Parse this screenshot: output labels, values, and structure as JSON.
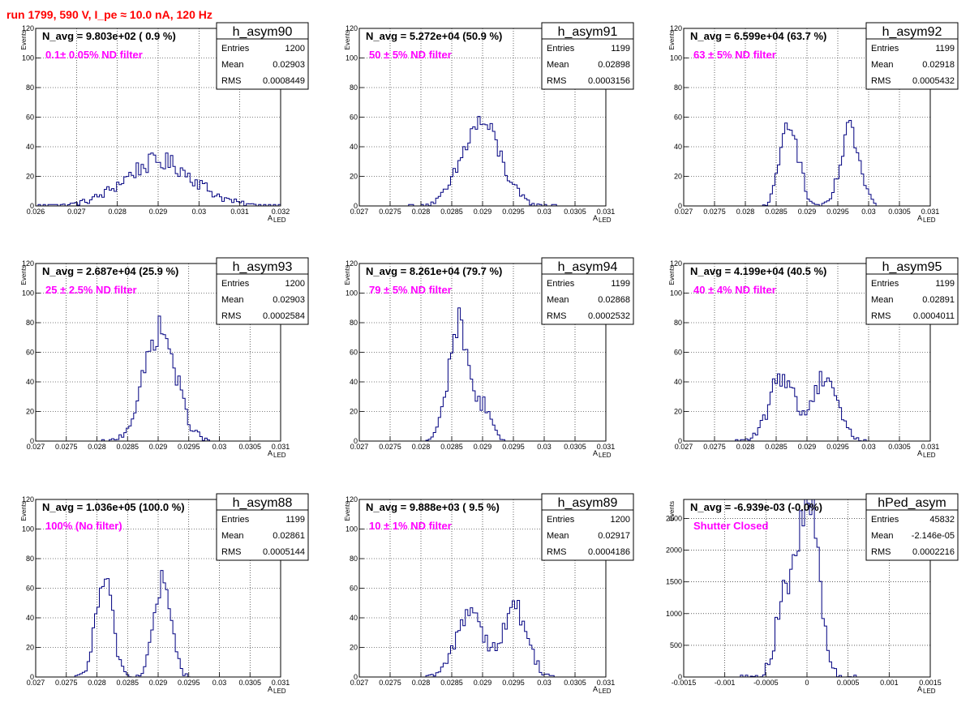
{
  "run_title": "run 1799,   590 V, I_pe ≈ 10.0 nA, 120 Hz",
  "colors": {
    "title": "#ff0000",
    "filter_label": "#ff00ff",
    "histogram_line": "#000080",
    "grid": "#000000"
  },
  "stat_labels": {
    "entries": "Entries",
    "mean": "Mean",
    "rms": "RMS"
  },
  "axis_labels": {
    "y": "Events",
    "x_main": "A",
    "x_sub": "LED"
  },
  "chart_data": [
    {
      "type": "histogram",
      "grid": true,
      "name": "h_asym90",
      "n_avg": "N_avg = 9.803e+02 ( 0.9 %)",
      "filter": "0.1± 0.05% ND filter",
      "entries": "1200",
      "mean": "0.02903",
      "rms": "0.0008449",
      "xlim": [
        0.026,
        0.032
      ],
      "ylim": [
        0,
        120
      ],
      "xticks": [
        "0.026",
        "0.027",
        "0.028",
        "0.029",
        "0.03",
        "0.031",
        "0.032"
      ],
      "yticks": [
        "0",
        "20",
        "40",
        "60",
        "80",
        "100",
        "120"
      ],
      "shape": [
        [
          0.02903,
          0.00085,
          30
        ]
      ]
    },
    {
      "type": "histogram",
      "grid": true,
      "name": "h_asym91",
      "n_avg": "N_avg = 5.272e+04 (50.9 %)",
      "filter": "50 ± 5% ND filter",
      "entries": "1199",
      "mean": "0.02898",
      "rms": "0.0003156",
      "xlim": [
        0.027,
        0.031
      ],
      "ylim": [
        0,
        120
      ],
      "xticks": [
        "0.027",
        "0.0275",
        "0.028",
        "0.0285",
        "0.029",
        "0.0295",
        "0.03",
        "0.0305",
        "0.031"
      ],
      "yticks": [
        "0",
        "20",
        "40",
        "60",
        "80",
        "100",
        "120"
      ],
      "shape": [
        [
          0.02898,
          0.00031,
          56
        ]
      ]
    },
    {
      "type": "histogram",
      "grid": true,
      "name": "h_asym92",
      "n_avg": "N_avg = 6.599e+04 (63.7 %)",
      "filter": "63 ± 5% ND filter",
      "entries": "1199",
      "mean": "0.02918",
      "rms": "0.0005432",
      "xlim": [
        0.027,
        0.031
      ],
      "ylim": [
        0,
        120
      ],
      "xticks": [
        "0.027",
        "0.0275",
        "0.028",
        "0.0285",
        "0.029",
        "0.0295",
        "0.03",
        "0.0305",
        "0.031"
      ],
      "yticks": [
        "0",
        "20",
        "40",
        "60",
        "80",
        "100",
        "120"
      ],
      "shape": [
        [
          0.02872,
          0.00014,
          60
        ],
        [
          0.0297,
          0.00015,
          50
        ]
      ]
    },
    {
      "type": "histogram",
      "grid": true,
      "name": "h_asym93",
      "n_avg": "N_avg = 2.687e+04 (25.9 %)",
      "filter": "25 ± 2.5% ND filter",
      "entries": "1200",
      "mean": "0.02903",
      "rms": "0.0002584",
      "xlim": [
        0.027,
        0.031
      ],
      "ylim": [
        0,
        120
      ],
      "xticks": [
        "0.027",
        "0.0275",
        "0.028",
        "0.0285",
        "0.029",
        "0.0295",
        "0.03",
        "0.0305",
        "0.031"
      ],
      "yticks": [
        "0",
        "20",
        "40",
        "60",
        "80",
        "100",
        "120"
      ],
      "shape": [
        [
          0.02903,
          0.00026,
          75
        ]
      ]
    },
    {
      "type": "histogram",
      "grid": true,
      "name": "h_asym94",
      "n_avg": "N_avg = 8.261e+04 (79.7 %)",
      "filter": "79 ± 5% ND filter",
      "entries": "1199",
      "mean": "0.02868",
      "rms": "0.0002532",
      "xlim": [
        0.027,
        0.031
      ],
      "ylim": [
        0,
        120
      ],
      "xticks": [
        "0.027",
        "0.0275",
        "0.028",
        "0.0285",
        "0.029",
        "0.0295",
        "0.03",
        "0.0305",
        "0.031"
      ],
      "yticks": [
        "0",
        "20",
        "40",
        "60",
        "80",
        "100",
        "120"
      ],
      "shape": [
        [
          0.02862,
          0.00017,
          80
        ],
        [
          0.02905,
          0.0001,
          22
        ]
      ]
    },
    {
      "type": "histogram",
      "grid": true,
      "name": "h_asym95",
      "n_avg": "N_avg = 4.199e+04 (40.5 %)",
      "filter": "40 ± 4% ND filter",
      "entries": "1199",
      "mean": "0.02891",
      "rms": "0.0004011",
      "xlim": [
        0.027,
        0.031
      ],
      "ylim": [
        0,
        120
      ],
      "xticks": [
        "0.027",
        "0.0275",
        "0.028",
        "0.0285",
        "0.029",
        "0.0295",
        "0.03",
        "0.0305",
        "0.031"
      ],
      "yticks": [
        "0",
        "20",
        "40",
        "60",
        "80",
        "100",
        "120"
      ],
      "shape": [
        [
          0.0286,
          0.0002,
          45
        ],
        [
          0.0293,
          0.0002,
          45
        ]
      ]
    },
    {
      "type": "histogram",
      "grid": true,
      "name": "h_asym88",
      "n_avg": "N_avg = 1.036e+05 (100.0 %)",
      "filter": "100% (No filter)",
      "entries": "1199",
      "mean": "0.02861",
      "rms": "0.0005144",
      "xlim": [
        0.027,
        0.031
      ],
      "ylim": [
        0,
        120
      ],
      "xticks": [
        "0.027",
        "0.0275",
        "0.028",
        "0.0285",
        "0.029",
        "0.0295",
        "0.03",
        "0.0305",
        "0.031"
      ],
      "yticks": [
        "0",
        "20",
        "40",
        "60",
        "80",
        "100",
        "120"
      ],
      "shape": [
        [
          0.02812,
          0.00014,
          64
        ],
        [
          0.02907,
          0.00014,
          64
        ]
      ]
    },
    {
      "type": "histogram",
      "grid": true,
      "name": "h_asym89",
      "n_avg": "N_avg = 9.888e+03 ( 9.5 %)",
      "filter": "10 ± 1% ND filter",
      "entries": "1200",
      "mean": "0.02917",
      "rms": "0.0004186",
      "xlim": [
        0.027,
        0.031
      ],
      "ylim": [
        0,
        120
      ],
      "xticks": [
        "0.027",
        "0.0275",
        "0.028",
        "0.0285",
        "0.029",
        "0.0295",
        "0.03",
        "0.0305",
        "0.031"
      ],
      "yticks": [
        "0",
        "20",
        "40",
        "60",
        "80",
        "100",
        "120"
      ],
      "shape": [
        [
          0.0288,
          0.00022,
          46
        ],
        [
          0.02953,
          0.0002,
          46
        ]
      ]
    },
    {
      "type": "histogram",
      "grid": true,
      "name": "hPed_asym",
      "n_avg": "N_avg = -6.939e-03 (-0.0%)",
      "filter": "Shutter Closed",
      "entries": "45832",
      "mean": "-2.146e-05",
      "rms": "0.0002216",
      "xlim": [
        -0.0015,
        0.0015
      ],
      "ylim": [
        0,
        2800
      ],
      "xticks": [
        "-0.0015",
        "-0.001",
        "-0.0005",
        "0",
        "0.0005",
        "0.001",
        "0.0015"
      ],
      "yticks": [
        "0",
        "500",
        "1000",
        "1500",
        "2000",
        "2500"
      ],
      "shape": [
        [
          -0.00025,
          0.00012,
          1300
        ],
        [
          3e-05,
          0.00012,
          2700
        ]
      ]
    }
  ]
}
